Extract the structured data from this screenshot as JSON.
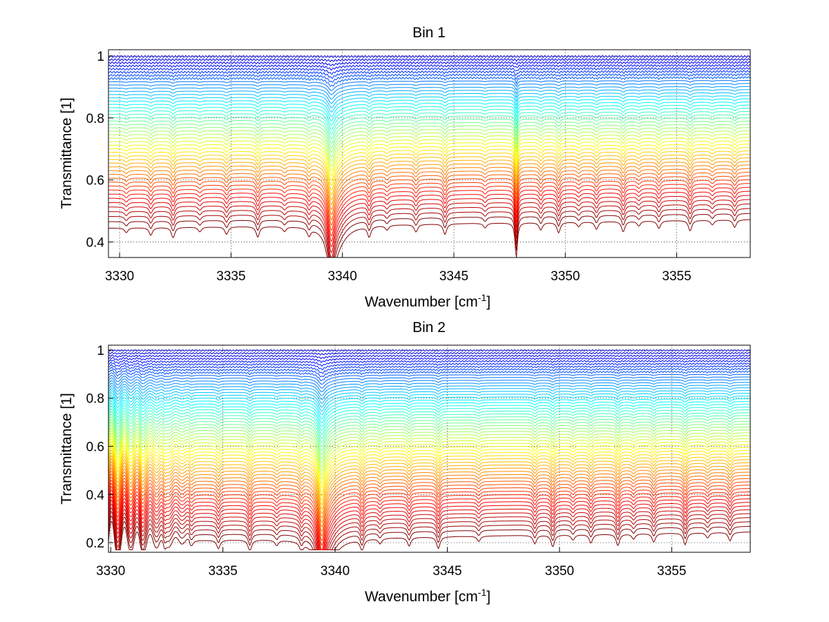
{
  "chart_data": [
    {
      "type": "line",
      "title": "Bin 1",
      "xlabel": {
        "main": "Wavenumber [cm",
        "sup": "-1",
        "close": "]"
      },
      "ylabel": "Transmittance [1]",
      "xlim": [
        3329.5,
        3358.3
      ],
      "ylim": [
        0.35,
        1.02
      ],
      "xticks": [
        3330,
        3335,
        3340,
        3345,
        3350,
        3355
      ],
      "yticks": [
        0.4,
        0.6,
        0.8,
        1
      ],
      "grid": true,
      "colormap": "jet",
      "series_count": 48,
      "series_baseline_range": [
        0.445,
        0.998
      ],
      "main_absorption_line_cm1": 3339.5,
      "secondary_absorption_line_cm1": 3347.8,
      "min_transmittance": 0.35
    },
    {
      "type": "line",
      "title": "Bin 2",
      "xlabel": {
        "main": "Wavenumber [cm",
        "sup": "-1",
        "close": "]"
      },
      "ylabel": "Transmittance [1]",
      "xlim": [
        3329.9,
        3358.5
      ],
      "ylim": [
        0.16,
        1.02
      ],
      "xticks": [
        3330,
        3335,
        3340,
        3345,
        3350,
        3355
      ],
      "yticks": [
        0.2,
        0.4,
        0.6,
        0.8,
        1
      ],
      "grid": true,
      "colormap": "jet",
      "series_count": 60,
      "series_baseline_range": [
        0.205,
        0.998
      ],
      "main_absorption_line_cm1": 3339.4,
      "min_transmittance": 0.17
    }
  ]
}
